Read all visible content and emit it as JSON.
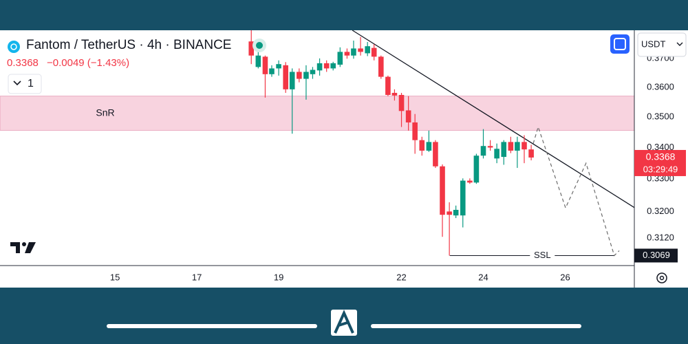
{
  "header": {
    "symbol": "Fantom / TetherUS · 4h · BINANCE",
    "last": "0.3368",
    "change": "−0.0049 (−1.43%)",
    "indicator_count": "1",
    "currency": "USDT"
  },
  "chart_data": {
    "type": "candlestick",
    "x": [
      18.33,
      18.5,
      18.67,
      18.83,
      19,
      19.17,
      19.33,
      19.5,
      19.67,
      19.83,
      20,
      20.17,
      20.33,
      20.5,
      20.67,
      20.83,
      21,
      21.17,
      21.33,
      21.5,
      21.67,
      21.83,
      22,
      22.17,
      22.33,
      22.5,
      22.67,
      22.83,
      23,
      23.17,
      23.33,
      23.5,
      23.67,
      23.83,
      24,
      24.17,
      24.33,
      24.5,
      24.67,
      24.83,
      25,
      25.17
    ],
    "open": [
      0.376,
      0.367,
      0.3706,
      0.3645,
      0.3665,
      0.3676,
      0.3593,
      0.3653,
      0.3629,
      0.3645,
      0.3658,
      0.3683,
      0.3665,
      0.3678,
      0.3723,
      0.371,
      0.3735,
      0.3718,
      0.3737,
      0.3706,
      0.3636,
      0.3581,
      0.3574,
      0.3522,
      0.3482,
      0.3424,
      0.339,
      0.3418,
      0.334,
      0.32,
      0.3188,
      0.3188,
      0.3295,
      0.3289,
      0.3374,
      0.3405,
      0.3365,
      0.337,
      0.3418,
      0.339,
      0.3418,
      0.3394
    ],
    "high": [
      0.38,
      0.376,
      0.371,
      0.3676,
      0.3693,
      0.3687,
      0.3665,
      0.3665,
      0.3676,
      0.367,
      0.37,
      0.3693,
      0.3688,
      0.3739,
      0.3735,
      0.3763,
      0.3776,
      0.3758,
      0.375,
      0.371,
      0.364,
      0.3593,
      0.3581,
      0.357,
      0.351,
      0.3435,
      0.3455,
      0.3424,
      0.3346,
      0.3228,
      0.3218,
      0.3302,
      0.3302,
      0.338,
      0.346,
      0.3424,
      0.3413,
      0.3424,
      0.3435,
      0.3435,
      0.344,
      0.3409
    ],
    "low": [
      0.368,
      0.3665,
      0.3565,
      0.3636,
      0.364,
      0.3581,
      0.3445,
      0.3617,
      0.3558,
      0.3629,
      0.364,
      0.3653,
      0.3658,
      0.367,
      0.3699,
      0.3699,
      0.371,
      0.3708,
      0.3693,
      0.3629,
      0.357,
      0.3555,
      0.3467,
      0.3455,
      0.338,
      0.3374,
      0.3386,
      0.3335,
      0.3124,
      0.3069,
      0.318,
      0.3152,
      0.3285,
      0.3285,
      0.3365,
      0.339,
      0.335,
      0.3345,
      0.3382,
      0.3335,
      0.335,
      0.3359
    ],
    "close": [
      0.371,
      0.371,
      0.3645,
      0.3665,
      0.368,
      0.3593,
      0.3653,
      0.3629,
      0.3653,
      0.366,
      0.3683,
      0.3665,
      0.3683,
      0.3723,
      0.371,
      0.3735,
      0.3723,
      0.3743,
      0.3706,
      0.3636,
      0.3574,
      0.3572,
      0.352,
      0.3482,
      0.3424,
      0.339,
      0.3418,
      0.334,
      0.319,
      0.319,
      0.3205,
      0.3295,
      0.3289,
      0.3374,
      0.3405,
      0.34,
      0.3396,
      0.3418,
      0.339,
      0.3418,
      0.3394,
      0.3368
    ],
    "up_color": "#089981",
    "down_color": "#f23645",
    "xlim": [
      12.19,
      27.69
    ],
    "xticks": [
      15,
      17,
      19,
      22,
      24,
      26
    ],
    "ylim": [
      0.304,
      0.38
    ],
    "log_scale": true,
    "yticks": [
      {
        "value": 0.37,
        "label": "0.3700"
      },
      {
        "value": 0.36,
        "label": "0.3600"
      },
      {
        "value": 0.35,
        "label": "0.3500"
      },
      {
        "value": 0.34,
        "label": "0.3400"
      },
      {
        "value": 0.33,
        "label": "0.3300"
      },
      {
        "value": 0.32,
        "label": "0.3200"
      },
      {
        "value": 0.312,
        "label": "0.3120"
      }
    ],
    "grid": false,
    "zone": {
      "label": "SnR",
      "top": 0.357,
      "bottom": 0.3456,
      "color": "#f8d3df"
    },
    "trendline": {
      "x": [
        20.8,
        27.69
      ],
      "y": [
        0.38,
        0.3212
      ]
    },
    "projection": {
      "x": [
        25.22,
        25.34,
        26.01,
        26.51,
        27.2,
        27.32
      ],
      "y": [
        0.3413,
        0.3467,
        0.3211,
        0.335,
        0.3069,
        0.3083
      ]
    },
    "ssl": {
      "label": "SSL",
      "value": 0.3069,
      "x": [
        23.18,
        27.2
      ]
    },
    "last_price": {
      "value": 0.3368,
      "countdown": "03:29:49"
    }
  }
}
